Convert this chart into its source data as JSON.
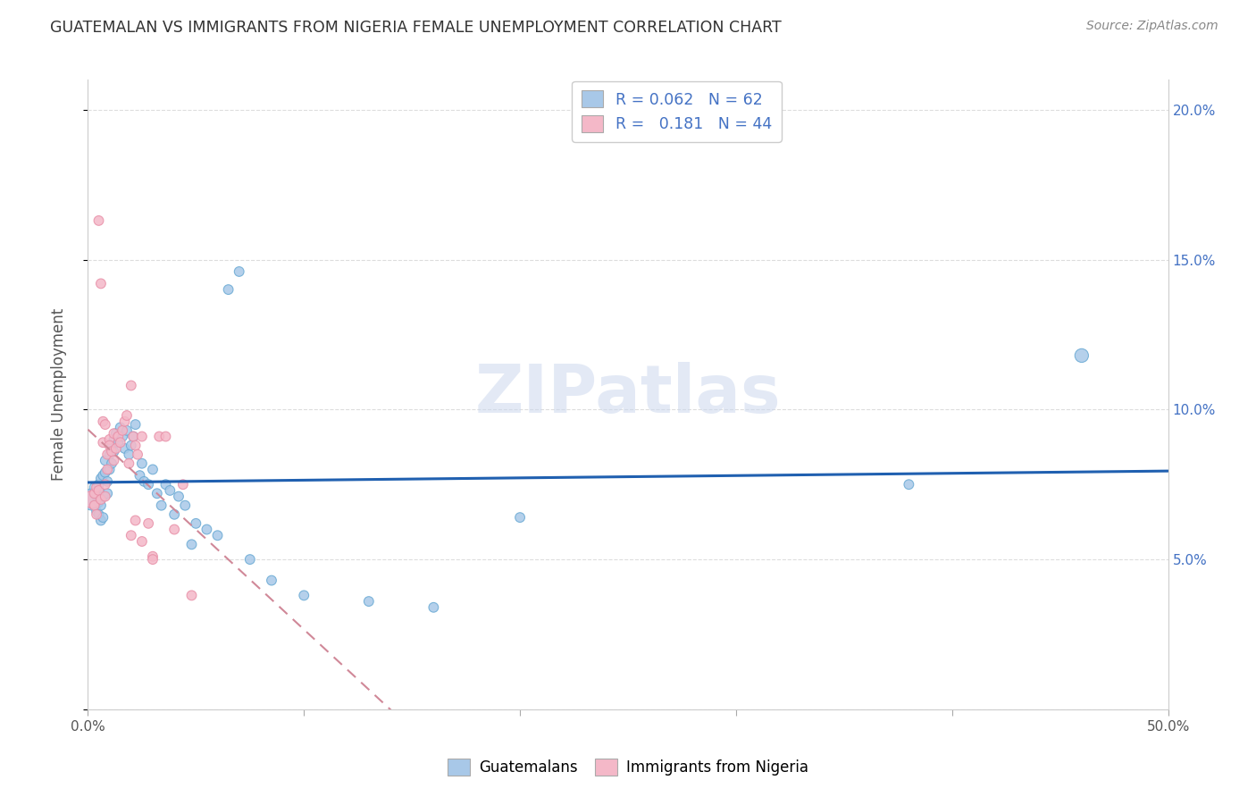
{
  "title": "GUATEMALAN VS IMMIGRANTS FROM NIGERIA FEMALE UNEMPLOYMENT CORRELATION CHART",
  "source": "Source: ZipAtlas.com",
  "ylabel": "Female Unemployment",
  "xlim": [
    0.0,
    0.5
  ],
  "ylim": [
    0.0,
    0.21
  ],
  "watermark": "ZIPatlas",
  "blue_color": "#a8c8e8",
  "blue_edge": "#6aaad4",
  "pink_color": "#f4b8c8",
  "pink_edge": "#e890a8",
  "blue_line_color": "#2060b0",
  "pink_line_color": "#d08898",
  "grid_color": "#dddddd",
  "right_tick_color": "#4472c4",
  "guatemalan_x": [
    0.002,
    0.003,
    0.003,
    0.004,
    0.004,
    0.004,
    0.005,
    0.005,
    0.005,
    0.005,
    0.006,
    0.006,
    0.006,
    0.007,
    0.007,
    0.007,
    0.008,
    0.008,
    0.009,
    0.009,
    0.01,
    0.01,
    0.011,
    0.011,
    0.012,
    0.012,
    0.013,
    0.014,
    0.015,
    0.016,
    0.017,
    0.018,
    0.019,
    0.02,
    0.021,
    0.022,
    0.024,
    0.025,
    0.026,
    0.028,
    0.03,
    0.032,
    0.034,
    0.036,
    0.038,
    0.04,
    0.042,
    0.045,
    0.048,
    0.05,
    0.055,
    0.06,
    0.065,
    0.07,
    0.075,
    0.085,
    0.1,
    0.13,
    0.16,
    0.2,
    0.38,
    0.46
  ],
  "guatemalan_y": [
    0.07,
    0.068,
    0.074,
    0.071,
    0.066,
    0.072,
    0.065,
    0.069,
    0.073,
    0.075,
    0.063,
    0.068,
    0.077,
    0.071,
    0.064,
    0.078,
    0.079,
    0.083,
    0.072,
    0.076,
    0.08,
    0.085,
    0.082,
    0.088,
    0.09,
    0.086,
    0.092,
    0.089,
    0.094,
    0.091,
    0.087,
    0.093,
    0.085,
    0.088,
    0.091,
    0.095,
    0.078,
    0.082,
    0.076,
    0.075,
    0.08,
    0.072,
    0.068,
    0.075,
    0.073,
    0.065,
    0.071,
    0.068,
    0.055,
    0.062,
    0.06,
    0.058,
    0.14,
    0.146,
    0.05,
    0.043,
    0.038,
    0.036,
    0.034,
    0.064,
    0.075,
    0.118
  ],
  "guatemalan_size": [
    300,
    60,
    60,
    60,
    60,
    60,
    60,
    60,
    60,
    60,
    60,
    60,
    60,
    60,
    60,
    60,
    60,
    60,
    60,
    60,
    60,
    60,
    60,
    60,
    60,
    60,
    60,
    60,
    60,
    60,
    60,
    60,
    60,
    60,
    60,
    60,
    60,
    60,
    60,
    60,
    60,
    60,
    60,
    60,
    60,
    60,
    60,
    60,
    60,
    60,
    60,
    60,
    60,
    60,
    60,
    60,
    60,
    60,
    60,
    60,
    60,
    120
  ],
  "nigeria_x": [
    0.002,
    0.003,
    0.003,
    0.004,
    0.004,
    0.005,
    0.005,
    0.006,
    0.006,
    0.007,
    0.007,
    0.008,
    0.008,
    0.008,
    0.009,
    0.009,
    0.01,
    0.01,
    0.011,
    0.012,
    0.012,
    0.013,
    0.014,
    0.015,
    0.016,
    0.017,
    0.018,
    0.019,
    0.02,
    0.021,
    0.022,
    0.023,
    0.025,
    0.028,
    0.03,
    0.033,
    0.036,
    0.04,
    0.044,
    0.048,
    0.02,
    0.022,
    0.025,
    0.03
  ],
  "nigeria_y": [
    0.07,
    0.068,
    0.072,
    0.065,
    0.074,
    0.163,
    0.073,
    0.142,
    0.07,
    0.089,
    0.096,
    0.075,
    0.071,
    0.095,
    0.08,
    0.085,
    0.09,
    0.088,
    0.086,
    0.092,
    0.083,
    0.087,
    0.091,
    0.089,
    0.093,
    0.096,
    0.098,
    0.082,
    0.108,
    0.091,
    0.088,
    0.085,
    0.091,
    0.062,
    0.051,
    0.091,
    0.091,
    0.06,
    0.075,
    0.038,
    0.058,
    0.063,
    0.056,
    0.05
  ],
  "nigeria_size": [
    200,
    60,
    60,
    60,
    60,
    60,
    60,
    60,
    60,
    60,
    60,
    60,
    60,
    60,
    60,
    60,
    60,
    60,
    60,
    60,
    60,
    60,
    60,
    60,
    60,
    60,
    60,
    60,
    60,
    60,
    60,
    60,
    60,
    60,
    60,
    60,
    60,
    60,
    60,
    60,
    60,
    60,
    60,
    60
  ]
}
